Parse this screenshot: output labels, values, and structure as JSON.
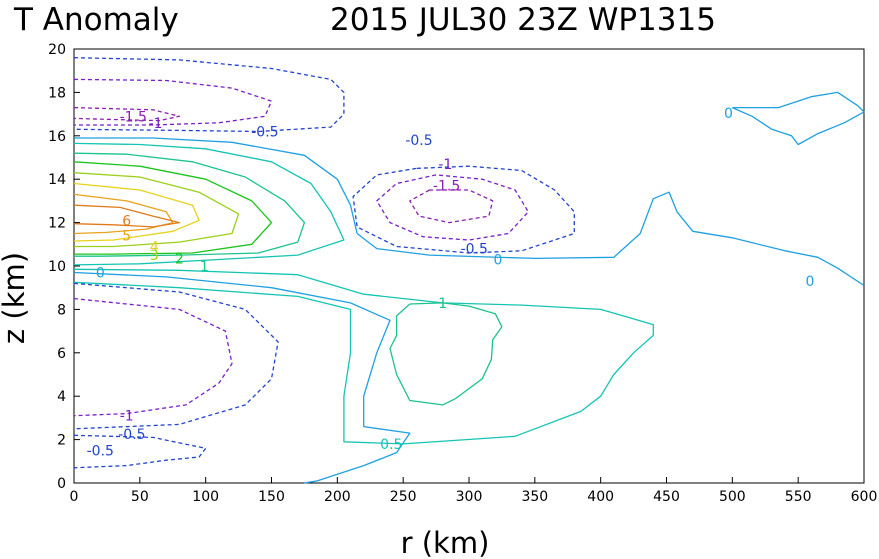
{
  "title_left": "T Anomaly",
  "title_right": "2015 JUL30 23Z   WP1315",
  "chart_data": {
    "type": "contour",
    "xlabel": "r (km)",
    "ylabel": "z (km)",
    "xlim": [
      0,
      600
    ],
    "ylim": [
      0,
      20
    ],
    "xticks": [
      0,
      50,
      100,
      150,
      200,
      250,
      300,
      350,
      400,
      450,
      500,
      550,
      600
    ],
    "yticks": [
      0,
      2,
      4,
      6,
      8,
      10,
      12,
      14,
      16,
      18,
      20
    ],
    "grid": false,
    "levels": [
      {
        "value": -1.5,
        "color": "#8a1fb0",
        "dashed": true
      },
      {
        "value": -1,
        "color": "#7a1fc8",
        "dashed": true
      },
      {
        "value": -0.5,
        "color": "#2244cc",
        "dashed": true
      },
      {
        "value": 0,
        "color": "#1fa0e0",
        "dashed": false
      },
      {
        "value": 0.5,
        "color": "#16c4b4",
        "dashed": false
      },
      {
        "value": 1,
        "color": "#1bc48a",
        "dashed": false
      },
      {
        "value": 2,
        "color": "#1cc41c",
        "dashed": false
      },
      {
        "value": 3,
        "color": "#9ad01c",
        "dashed": false
      },
      {
        "value": 4,
        "color": "#e6d21c",
        "dashed": false
      },
      {
        "value": 5,
        "color": "#e8a21c",
        "dashed": false
      },
      {
        "value": 6,
        "color": "#e07a1c",
        "dashed": false
      }
    ],
    "contours": [
      {
        "level": -0.5,
        "points": [
          [
            0,
            19.6
          ],
          [
            80,
            19.5
          ],
          [
            150,
            19.1
          ],
          [
            195,
            18.6
          ],
          [
            205,
            18
          ],
          [
            205,
            17
          ],
          [
            195,
            16.4
          ],
          [
            140,
            16.2
          ],
          [
            80,
            16.25
          ],
          [
            0,
            16.3
          ]
        ]
      },
      {
        "level": -1,
        "points": [
          [
            0,
            18.6
          ],
          [
            70,
            18.55
          ],
          [
            120,
            18.2
          ],
          [
            150,
            17.6
          ],
          [
            145,
            16.9
          ],
          [
            110,
            16.6
          ],
          [
            60,
            16.5
          ],
          [
            0,
            16.5
          ]
        ]
      },
      {
        "level": -1.5,
        "points": [
          [
            0,
            17.3
          ],
          [
            60,
            17.2
          ],
          [
            80,
            16.9
          ],
          [
            65,
            16.7
          ],
          [
            30,
            16.75
          ],
          [
            0,
            16.8
          ]
        ]
      },
      {
        "level": 0,
        "points": [
          [
            0,
            15.9
          ],
          [
            60,
            15.9
          ],
          [
            120,
            15.7
          ],
          [
            175,
            15.1
          ],
          [
            200,
            14
          ],
          [
            210,
            12.8
          ],
          [
            215,
            11.5
          ],
          [
            230,
            10.8
          ],
          [
            270,
            10.5
          ],
          [
            350,
            10.35
          ],
          [
            410,
            10.4
          ],
          [
            430,
            11.5
          ],
          [
            440,
            13.1
          ],
          [
            452,
            13.4
          ],
          [
            458,
            12.5
          ],
          [
            470,
            11.6
          ],
          [
            500,
            11.3
          ],
          [
            540,
            10.7
          ],
          [
            565,
            10.4
          ],
          [
            580,
            9.9
          ],
          [
            600,
            9.1
          ]
        ]
      },
      {
        "level": 0.5,
        "points": [
          [
            0,
            15.65
          ],
          [
            50,
            15.6
          ],
          [
            100,
            15.4
          ],
          [
            150,
            14.8
          ],
          [
            180,
            13.8
          ],
          [
            195,
            12.5
          ],
          [
            205,
            11.2
          ],
          [
            170,
            10.5
          ],
          [
            110,
            10.3
          ],
          [
            50,
            10.1
          ],
          [
            0,
            10.05
          ]
        ]
      },
      {
        "level": 1,
        "points": [
          [
            0,
            15.2
          ],
          [
            40,
            15.15
          ],
          [
            90,
            14.8
          ],
          [
            130,
            14.1
          ],
          [
            160,
            13
          ],
          [
            175,
            12
          ],
          [
            170,
            11.1
          ],
          [
            140,
            10.6
          ],
          [
            80,
            10.5
          ],
          [
            20,
            10.45
          ],
          [
            0,
            10.45
          ]
        ]
      },
      {
        "level": 2,
        "points": [
          [
            0,
            14.8
          ],
          [
            50,
            14.6
          ],
          [
            100,
            14
          ],
          [
            135,
            13
          ],
          [
            150,
            12
          ],
          [
            135,
            11
          ],
          [
            90,
            10.6
          ],
          [
            30,
            10.55
          ],
          [
            0,
            10.55
          ]
        ]
      },
      {
        "level": 3,
        "points": [
          [
            0,
            14.3
          ],
          [
            50,
            14.1
          ],
          [
            95,
            13.4
          ],
          [
            125,
            12.4
          ],
          [
            120,
            11.5
          ],
          [
            80,
            11.1
          ],
          [
            30,
            10.9
          ],
          [
            0,
            10.9
          ]
        ]
      },
      {
        "level": 4,
        "points": [
          [
            0,
            13.8
          ],
          [
            50,
            13.5
          ],
          [
            90,
            12.8
          ],
          [
            95,
            12.1
          ],
          [
            75,
            11.6
          ],
          [
            30,
            11.2
          ],
          [
            0,
            11.15
          ]
        ]
      },
      {
        "level": 5,
        "points": [
          [
            0,
            13.3
          ],
          [
            40,
            13
          ],
          [
            70,
            12.5
          ],
          [
            75,
            12
          ],
          [
            55,
            11.7
          ],
          [
            25,
            11.55
          ],
          [
            0,
            11.5
          ]
        ]
      },
      {
        "level": 6,
        "points": [
          [
            0,
            12.8
          ],
          [
            35,
            12.7
          ],
          [
            60,
            12.3
          ],
          [
            80,
            12
          ],
          [
            60,
            11.8
          ],
          [
            30,
            11.9
          ],
          [
            0,
            11.95
          ]
        ]
      },
      {
        "level": -0.5,
        "points": [
          [
            260,
            14.5
          ],
          [
            230,
            14.2
          ],
          [
            212,
            13.2
          ],
          [
            215,
            11.8
          ],
          [
            245,
            10.9
          ],
          [
            300,
            10.6
          ],
          [
            340,
            10.7
          ],
          [
            380,
            11.5
          ],
          [
            380,
            12.5
          ],
          [
            365,
            13.5
          ],
          [
            340,
            14.4
          ],
          [
            300,
            14.6
          ],
          [
            260,
            14.5
          ]
        ]
      },
      {
        "level": -1,
        "points": [
          [
            275,
            14.2
          ],
          [
            245,
            13.8
          ],
          [
            230,
            13
          ],
          [
            240,
            12
          ],
          [
            265,
            11.35
          ],
          [
            300,
            11.2
          ],
          [
            330,
            11.5
          ],
          [
            345,
            12.5
          ],
          [
            335,
            13.5
          ],
          [
            310,
            14
          ],
          [
            275,
            14.2
          ]
        ]
      },
      {
        "level": -1.5,
        "points": [
          [
            270,
            13.5
          ],
          [
            255,
            13
          ],
          [
            262,
            12.3
          ],
          [
            285,
            12
          ],
          [
            315,
            12.3
          ],
          [
            318,
            13
          ],
          [
            300,
            13.5
          ],
          [
            270,
            13.5
          ]
        ]
      },
      {
        "level": 0,
        "points": [
          [
            0,
            9.7
          ],
          [
            70,
            9.5
          ],
          [
            150,
            9
          ],
          [
            210,
            8.3
          ],
          [
            240,
            7.5
          ],
          [
            230,
            6
          ],
          [
            220,
            4
          ],
          [
            220,
            2.6
          ],
          [
            255,
            2.3
          ],
          [
            245,
            1.4
          ],
          [
            220,
            0.8
          ],
          [
            185,
            0.1
          ],
          [
            175,
            0
          ]
        ]
      },
      {
        "level": 0.5,
        "points": [
          [
            0,
            9.25
          ],
          [
            80,
            9
          ],
          [
            170,
            8.6
          ],
          [
            210,
            8
          ],
          [
            210,
            6
          ],
          [
            205,
            4
          ],
          [
            205,
            1.9
          ],
          [
            250,
            1.8
          ],
          [
            335,
            2.15
          ],
          [
            385,
            3.3
          ],
          [
            400,
            4
          ],
          [
            410,
            5
          ],
          [
            425,
            6
          ],
          [
            440,
            6.8
          ],
          [
            440,
            7.3
          ],
          [
            400,
            8
          ],
          [
            340,
            8.2
          ],
          [
            280,
            8.3
          ],
          [
            220,
            8.7
          ],
          [
            170,
            9.6
          ],
          [
            80,
            9.8
          ],
          [
            0,
            9.85
          ]
        ]
      },
      {
        "level": 1,
        "points": [
          [
            255,
            8.25
          ],
          [
            245,
            7.7
          ],
          [
            245,
            6.8
          ],
          [
            240,
            6.2
          ],
          [
            245,
            5
          ],
          [
            255,
            3.8
          ],
          [
            280,
            3.6
          ],
          [
            290,
            3.9
          ],
          [
            310,
            4.8
          ],
          [
            317,
            5.7
          ],
          [
            318,
            6.6
          ],
          [
            325,
            7.2
          ],
          [
            320,
            7.8
          ],
          [
            300,
            8.15
          ],
          [
            280,
            8.3
          ],
          [
            255,
            8.25
          ]
        ]
      },
      {
        "level": -0.5,
        "points": [
          [
            0,
            9.2
          ],
          [
            80,
            8.8
          ],
          [
            130,
            8
          ],
          [
            155,
            6.5
          ],
          [
            150,
            4.8
          ],
          [
            130,
            3.6
          ],
          [
            80,
            2.7
          ],
          [
            0,
            2.5
          ]
        ]
      },
      {
        "level": -1,
        "points": [
          [
            0,
            8.5
          ],
          [
            80,
            8
          ],
          [
            115,
            7
          ],
          [
            120,
            5.5
          ],
          [
            110,
            4.6
          ],
          [
            85,
            3.6
          ],
          [
            40,
            3.2
          ],
          [
            0,
            3.1
          ]
        ]
      },
      {
        "level": -0.5,
        "points": [
          [
            0,
            2.2
          ],
          [
            60,
            2.1
          ],
          [
            100,
            1.6
          ],
          [
            95,
            1.2
          ],
          [
            70,
            1.05
          ],
          [
            40,
            0.8
          ],
          [
            0,
            0.7
          ]
        ]
      },
      {
        "level": 0,
        "points": [
          [
            500,
            17.3
          ],
          [
            535,
            17.3
          ],
          [
            560,
            17.8
          ],
          [
            580,
            18
          ],
          [
            595,
            17.4
          ],
          [
            600,
            17.1
          ],
          [
            585,
            16.6
          ],
          [
            565,
            16.1
          ],
          [
            550,
            15.6
          ],
          [
            545,
            16
          ],
          [
            530,
            16.3
          ],
          [
            515,
            16.9
          ],
          [
            500,
            17.3
          ]
        ]
      }
    ],
    "contour_labels": [
      {
        "text": "-1.5",
        "level": -1.5,
        "x": 45,
        "y": 16.9
      },
      {
        "text": "-1",
        "level": -1,
        "x": 62,
        "y": 16.6
      },
      {
        "text": "-0.5",
        "level": -0.5,
        "x": 145,
        "y": 16.2
      },
      {
        "text": "-0.5",
        "level": -0.5,
        "x": 262,
        "y": 15.8
      },
      {
        "text": "-1",
        "level": -1,
        "x": 282,
        "y": 14.7
      },
      {
        "text": "-1.5",
        "level": -1.5,
        "x": 283,
        "y": 13.7
      },
      {
        "text": "-0.5",
        "level": -0.5,
        "x": 304,
        "y": 10.8
      },
      {
        "text": "0",
        "level": 0,
        "x": 322,
        "y": 10.3
      },
      {
        "text": "0",
        "level": 0,
        "x": 497,
        "y": 17.05
      },
      {
        "text": "0",
        "level": 0,
        "x": 559,
        "y": 9.3
      },
      {
        "text": "6",
        "level": 6,
        "x": 40,
        "y": 12.1
      },
      {
        "text": "5",
        "level": 5,
        "x": 40,
        "y": 11.4
      },
      {
        "text": "4",
        "level": 4,
        "x": 61,
        "y": 10.9
      },
      {
        "text": "3",
        "level": 3,
        "x": 61,
        "y": 10.5
      },
      {
        "text": "2",
        "level": 2,
        "x": 80,
        "y": 10.35
      },
      {
        "text": "1",
        "level": 1,
        "x": 99,
        "y": 10
      },
      {
        "text": "0",
        "level": 0,
        "x": 20,
        "y": 9.7
      },
      {
        "text": "1",
        "level": 1,
        "x": 280,
        "y": 8.3
      },
      {
        "text": "0.5",
        "level": 0.5,
        "x": 241,
        "y": 1.8
      },
      {
        "text": "-1",
        "level": -1,
        "x": 40,
        "y": 3.1
      },
      {
        "text": "-0.5",
        "level": -0.5,
        "x": 44,
        "y": 2.25
      },
      {
        "text": "-0.5",
        "level": -0.5,
        "x": 20,
        "y": 1.5
      }
    ]
  }
}
